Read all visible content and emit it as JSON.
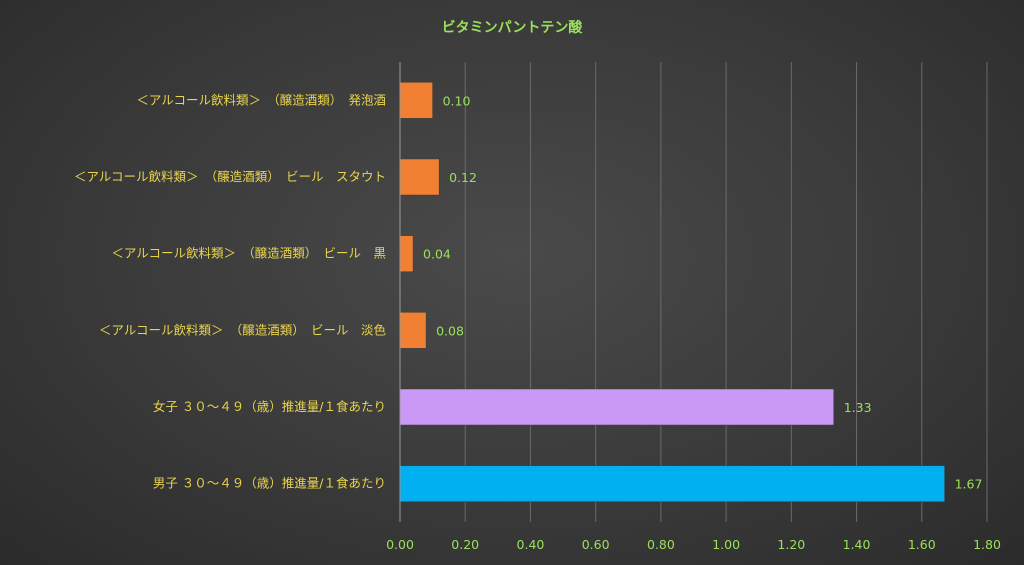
{
  "chart_data": {
    "type": "bar",
    "orientation": "horizontal",
    "title": "ビタミンパントテン酸",
    "categories": [
      "＜アルコール飲料類＞　（醸造酒類）　発泡酒",
      "＜アルコール飲料類＞　（醸造酒類）　ビール　スタウト",
      "＜アルコール飲料類＞　（醸造酒類）　ビール　黒",
      "＜アルコール飲料類＞　（醸造酒類）　ビール　淡色",
      "女子 ３０～４９（歳）推進量/１食あたり",
      "男子 ３０～４９（歳）推進量/１食あたり"
    ],
    "values": [
      0.1,
      0.12,
      0.04,
      0.08,
      1.33,
      1.67
    ],
    "value_labels": [
      "0.10",
      "0.12",
      "0.04",
      "0.08",
      "1.33",
      "1.67"
    ],
    "bar_colors": [
      "#F28033",
      "#F28033",
      "#F28033",
      "#F28033",
      "#C999F5",
      "#00B0F0"
    ],
    "xlim": [
      0,
      1.8
    ],
    "x_ticks": [
      "0.00",
      "0.20",
      "0.40",
      "0.60",
      "0.80",
      "1.00",
      "1.20",
      "1.40",
      "1.60",
      "1.80"
    ],
    "grid": true,
    "legend": "none"
  }
}
